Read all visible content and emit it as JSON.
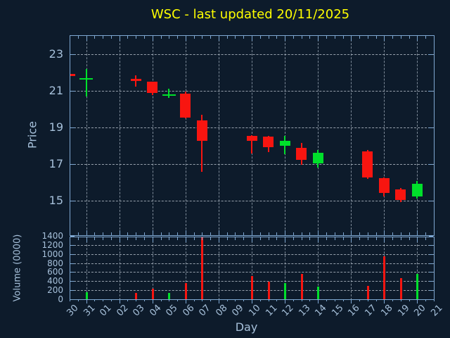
{
  "title": "WSC - last updated 20/11/2025",
  "axes": {
    "price": {
      "label": "Price",
      "ticks": [
        23,
        21,
        19,
        17,
        15
      ]
    },
    "volume": {
      "label": "Volume (0000)",
      "ticks": [
        1400,
        1200,
        1000,
        800,
        600,
        400,
        200,
        0
      ]
    },
    "day": {
      "label": "Day",
      "tick_labels": [
        "30",
        "31",
        "01",
        "02",
        "03",
        "04",
        "05",
        "06",
        "07",
        "08",
        "09",
        "10",
        "11",
        "12",
        "13",
        "14",
        "15",
        "16",
        "17",
        "18",
        "19",
        "20",
        "21"
      ]
    }
  },
  "colors": {
    "background": "#0d1b2b",
    "spine": "#7fa8d2",
    "text": "#a6c0da",
    "title": "#ffff00",
    "grid": "#c4ced8",
    "up": "#00e02b",
    "down": "#f81510"
  },
  "chart_data": [
    {
      "type": "candlestick",
      "title": "WSC - last updated 20/11/2025",
      "xlabel": "Day",
      "ylabel": "Price",
      "ylim": [
        13.2,
        24.0
      ],
      "yticks": [
        15,
        17,
        19,
        21,
        23
      ],
      "grid": true,
      "x_categories": [
        "30",
        "31",
        "01",
        "02",
        "03",
        "04",
        "05",
        "06",
        "07",
        "08",
        "09",
        "10",
        "11",
        "12",
        "13",
        "14",
        "15",
        "16",
        "17",
        "18",
        "19",
        "20",
        "21"
      ],
      "series": [
        {
          "day": "30",
          "open": 21.93,
          "high": 21.94,
          "low": 21.79,
          "close": 21.8,
          "direction": "down"
        },
        {
          "day": "31",
          "open": 21.7,
          "high": 22.2,
          "low": 20.7,
          "close": 21.7,
          "direction": "up"
        },
        {
          "day": "03",
          "open": 21.66,
          "high": 21.85,
          "low": 21.2,
          "close": 21.51,
          "direction": "down"
        },
        {
          "day": "04",
          "open": 21.49,
          "high": 21.5,
          "low": 20.74,
          "close": 20.89,
          "direction": "down"
        },
        {
          "day": "05",
          "open": 20.8,
          "high": 21.1,
          "low": 20.6,
          "close": 20.8,
          "direction": "up"
        },
        {
          "day": "06",
          "open": 20.84,
          "high": 20.96,
          "low": 19.47,
          "close": 19.53,
          "direction": "down"
        },
        {
          "day": "07",
          "open": 19.36,
          "high": 19.68,
          "low": 16.56,
          "close": 18.25,
          "direction": "down"
        },
        {
          "day": "10",
          "open": 18.53,
          "high": 18.55,
          "low": 17.55,
          "close": 18.25,
          "direction": "down"
        },
        {
          "day": "11",
          "open": 18.5,
          "high": 18.53,
          "low": 17.63,
          "close": 17.93,
          "direction": "down"
        },
        {
          "day": "12",
          "open": 17.97,
          "high": 18.53,
          "low": 17.51,
          "close": 18.27,
          "direction": "up"
        },
        {
          "day": "13",
          "open": 17.89,
          "high": 18.15,
          "low": 16.95,
          "close": 17.2,
          "direction": "down"
        },
        {
          "day": "14",
          "open": 17.03,
          "high": 17.76,
          "low": 16.78,
          "close": 17.61,
          "direction": "up"
        },
        {
          "day": "17",
          "open": 17.67,
          "high": 17.76,
          "low": 16.18,
          "close": 16.27,
          "direction": "down"
        },
        {
          "day": "18",
          "open": 16.21,
          "high": 16.27,
          "low": 15.21,
          "close": 15.41,
          "direction": "down"
        },
        {
          "day": "19",
          "open": 15.59,
          "high": 15.69,
          "low": 14.9,
          "close": 15.03,
          "direction": "down"
        },
        {
          "day": "20",
          "open": 15.22,
          "high": 16.05,
          "low": 15.12,
          "close": 15.92,
          "direction": "up"
        }
      ]
    },
    {
      "type": "bar",
      "ylabel": "Volume (0000)",
      "ylim": [
        0,
        1400
      ],
      "yticks": [
        0,
        200,
        400,
        600,
        800,
        1000,
        1200,
        1400
      ],
      "grid": true,
      "values": [
        {
          "day": "31",
          "volume": 160,
          "direction": "up"
        },
        {
          "day": "03",
          "volume": 140,
          "direction": "down"
        },
        {
          "day": "04",
          "volume": 235,
          "direction": "down"
        },
        {
          "day": "05",
          "volume": 140,
          "direction": "up"
        },
        {
          "day": "06",
          "volume": 365,
          "direction": "down"
        },
        {
          "day": "07",
          "volume": 1400,
          "direction": "down"
        },
        {
          "day": "10",
          "volume": 520,
          "direction": "down"
        },
        {
          "day": "11",
          "volume": 390,
          "direction": "down"
        },
        {
          "day": "12",
          "volume": 355,
          "direction": "up"
        },
        {
          "day": "13",
          "volume": 555,
          "direction": "down"
        },
        {
          "day": "14",
          "volume": 275,
          "direction": "up"
        },
        {
          "day": "17",
          "volume": 290,
          "direction": "down"
        },
        {
          "day": "18",
          "volume": 950,
          "direction": "down"
        },
        {
          "day": "19",
          "volume": 470,
          "direction": "down"
        },
        {
          "day": "20",
          "volume": 560,
          "direction": "up"
        }
      ]
    }
  ]
}
